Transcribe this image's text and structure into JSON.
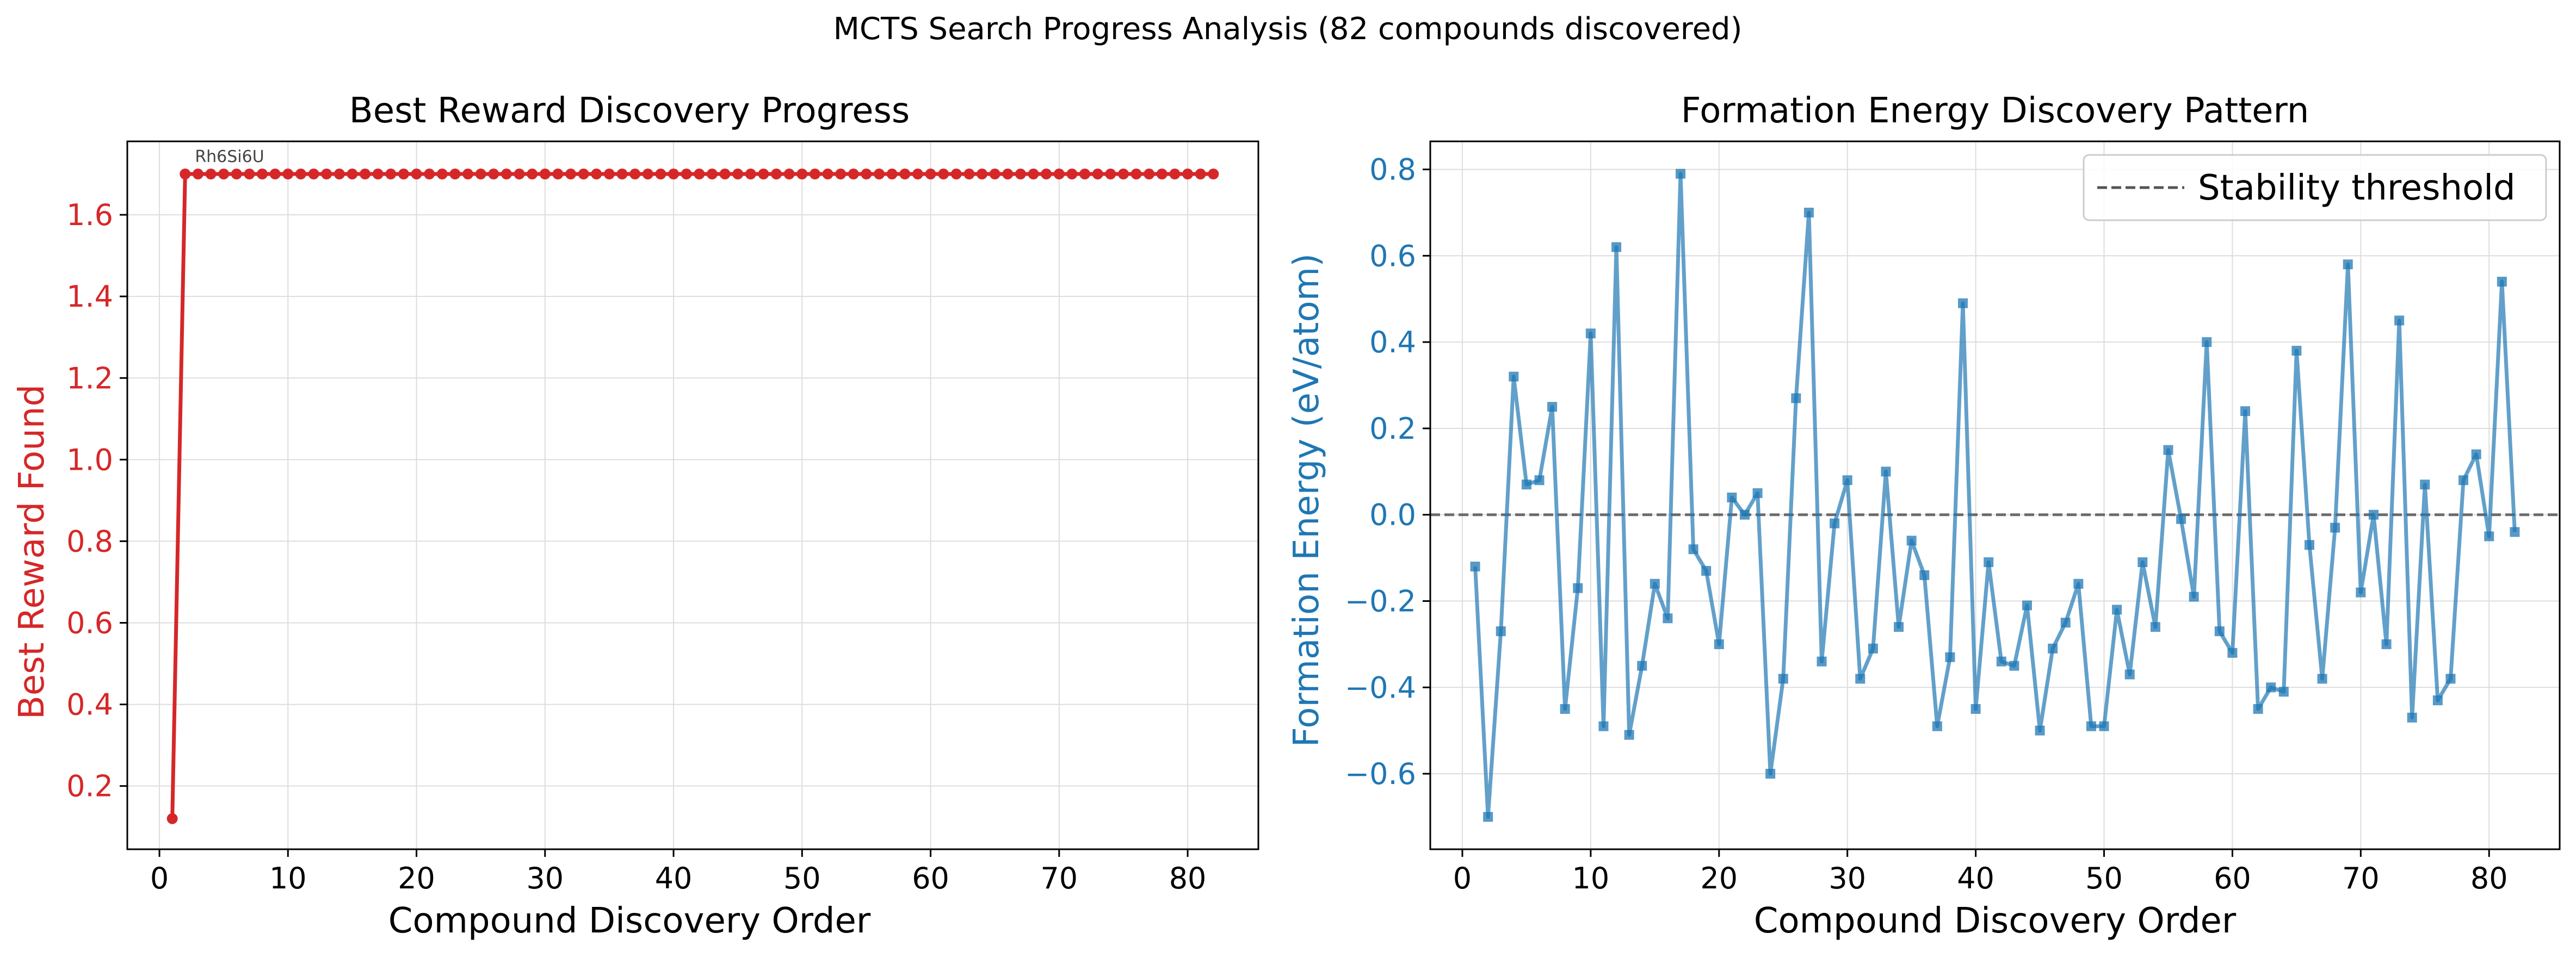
{
  "figure": {
    "suptitle": "MCTS Search Progress Analysis (82 compounds discovered)"
  },
  "chart_data": [
    {
      "type": "line",
      "title": "Best Reward Discovery Progress",
      "xlabel": "Compound Discovery Order",
      "ylabel": "Best Reward Found",
      "xlim": [
        -2.5,
        85.5
      ],
      "ylim": [
        0.045,
        1.78
      ],
      "xticks": [
        0,
        10,
        20,
        30,
        40,
        50,
        60,
        70,
        80
      ],
      "yticks": [
        0.2,
        0.4,
        0.6,
        0.8,
        1.0,
        1.2,
        1.4,
        1.6
      ],
      "grid": true,
      "color": "#d62728",
      "x_start": 1,
      "values": [
        0.12,
        1.7,
        1.7,
        1.7,
        1.7,
        1.7,
        1.7,
        1.7,
        1.7,
        1.7,
        1.7,
        1.7,
        1.7,
        1.7,
        1.7,
        1.7,
        1.7,
        1.7,
        1.7,
        1.7,
        1.7,
        1.7,
        1.7,
        1.7,
        1.7,
        1.7,
        1.7,
        1.7,
        1.7,
        1.7,
        1.7,
        1.7,
        1.7,
        1.7,
        1.7,
        1.7,
        1.7,
        1.7,
        1.7,
        1.7,
        1.7,
        1.7,
        1.7,
        1.7,
        1.7,
        1.7,
        1.7,
        1.7,
        1.7,
        1.7,
        1.7,
        1.7,
        1.7,
        1.7,
        1.7,
        1.7,
        1.7,
        1.7,
        1.7,
        1.7,
        1.7,
        1.7,
        1.7,
        1.7,
        1.7,
        1.7,
        1.7,
        1.7,
        1.7,
        1.7,
        1.7,
        1.7,
        1.7,
        1.7,
        1.7,
        1.7,
        1.7,
        1.7,
        1.7,
        1.7,
        1.7,
        1.7
      ],
      "annotations": [
        {
          "text": "Rh6Si6U",
          "x": 2,
          "y": 1.7
        }
      ]
    },
    {
      "type": "line",
      "title": "Formation Energy Discovery Pattern",
      "xlabel": "Compound Discovery Order",
      "ylabel": "Formation Energy (eV/atom)",
      "xlim": [
        -2.5,
        85.5
      ],
      "ylim": [
        -0.775,
        0.865
      ],
      "xticks": [
        0,
        10,
        20,
        30,
        40,
        50,
        60,
        70,
        80
      ],
      "yticks": [
        -0.6,
        -0.4,
        -0.2,
        0.0,
        0.2,
        0.4,
        0.6,
        0.8
      ],
      "grid": true,
      "color": "#1f77b4",
      "legend": {
        "placement": "top-right",
        "entries": [
          "Stability threshold"
        ]
      },
      "threshold": 0.0,
      "x_start": 1,
      "values": [
        -0.12,
        -0.7,
        -0.27,
        0.32,
        0.07,
        0.08,
        0.25,
        -0.45,
        -0.17,
        0.42,
        -0.49,
        0.62,
        -0.51,
        -0.35,
        -0.16,
        -0.24,
        0.79,
        -0.08,
        -0.13,
        -0.3,
        0.04,
        0.0,
        0.05,
        -0.6,
        -0.38,
        0.27,
        0.7,
        -0.34,
        -0.02,
        0.08,
        -0.38,
        -0.31,
        0.1,
        -0.26,
        -0.06,
        -0.14,
        -0.49,
        -0.33,
        0.49,
        -0.45,
        -0.11,
        -0.34,
        -0.35,
        -0.21,
        -0.5,
        -0.31,
        -0.25,
        -0.16,
        -0.49,
        -0.49,
        -0.22,
        -0.37,
        -0.11,
        -0.26,
        0.15,
        -0.01,
        -0.19,
        0.4,
        -0.27,
        -0.32,
        0.24,
        -0.45,
        -0.4,
        -0.41,
        0.38,
        -0.07,
        -0.38,
        -0.03,
        0.58,
        -0.18,
        0.0,
        -0.3,
        0.45,
        -0.47,
        0.07,
        -0.43,
        -0.38,
        0.08,
        0.14,
        -0.05,
        0.54,
        -0.04
      ]
    }
  ]
}
